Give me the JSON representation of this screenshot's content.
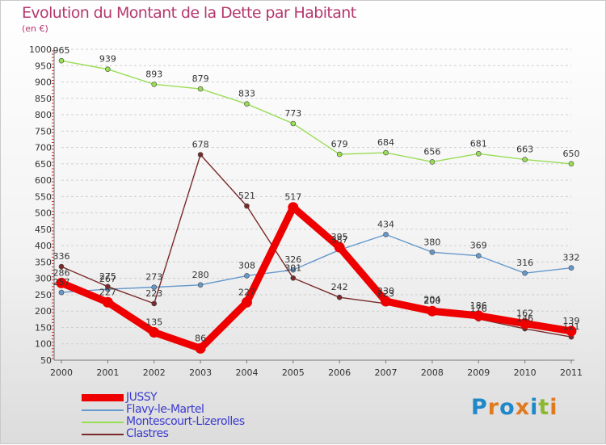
{
  "title": "Evolution du Montant de la Dette par Habitant",
  "subtitle": "(en €)",
  "brand": {
    "text": "Proxiti",
    "letters": [
      "P",
      "r",
      "o",
      "x",
      "i",
      "t",
      "i"
    ],
    "colors": [
      "#1f88c9",
      "#e07a1f",
      "#1f88c9",
      "#e07a1f",
      "#1f88c9",
      "#8cb82f",
      "#e07a1f"
    ]
  },
  "legend": [
    {
      "label": "JUSSY",
      "color": "#ee0000"
    },
    {
      "label": "Flavy-le-Martel",
      "color": "#6699cc"
    },
    {
      "label": "Montescourt-Lizerolles",
      "color": "#99dd55"
    },
    {
      "label": "Clastres",
      "color": "#7a2a2a"
    }
  ],
  "chart_data": {
    "type": "line",
    "title": "Evolution du Montant de la Dette par Habitant",
    "ylabel": "(en €)",
    "xlabel": "",
    "x": [
      "2000",
      "2001",
      "2002",
      "2003",
      "2004",
      "2005",
      "2006",
      "2007",
      "2008",
      "2009",
      "2010",
      "2011"
    ],
    "ylim": [
      50,
      1000
    ],
    "yticks": [
      50,
      100,
      150,
      200,
      250,
      300,
      350,
      400,
      450,
      500,
      550,
      600,
      650,
      700,
      750,
      800,
      850,
      900,
      950,
      1000
    ],
    "grid": "horizontal dashed",
    "legend_position": "bottom-left",
    "series": [
      {
        "name": "JUSSY",
        "color": "#ee0000",
        "values": [
          286,
          227,
          135,
          86,
          227,
          517,
          395,
          230,
          200,
          186,
          162,
          139
        ]
      },
      {
        "name": "Flavy-le-Martel",
        "color": "#6699cc",
        "values": [
          257,
          267,
          273,
          280,
          308,
          326,
          387,
          434,
          380,
          369,
          316,
          332
        ]
      },
      {
        "name": "Montescourt-Lizerolles",
        "color": "#99dd55",
        "values": [
          965,
          939,
          893,
          879,
          833,
          773,
          679,
          684,
          656,
          681,
          663,
          650
        ]
      },
      {
        "name": "Clastres",
        "color": "#7a2a2a",
        "values": [
          336,
          275,
          223,
          678,
          521,
          301,
          242,
          223,
          204,
          176,
          146,
          121
        ]
      }
    ]
  }
}
